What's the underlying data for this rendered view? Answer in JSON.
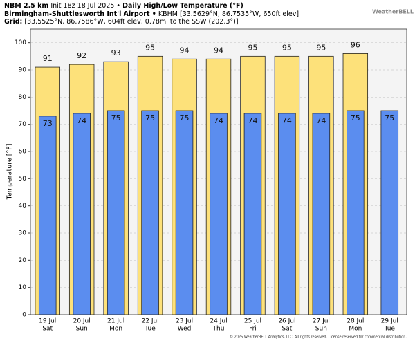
{
  "header": {
    "model": "NBM 2.5 km",
    "init": "Init 18z 18 Jul 2025 •",
    "title": "Daily High/Low Temperature (°F)",
    "station": "Birmingham-Shuttlesworth Int'l Airport •",
    "station_info": "KBHM [33.5629°N, 86.7535°W, 650ft elev]",
    "grid_label": "Grid:",
    "grid_info": "[33.5525°N, 86.7586°W, 604ft elev, 0.78mi to the SSW (202.3°)]",
    "logo": "WeatherBELL"
  },
  "chart_data": {
    "type": "bar",
    "y_label": "Temperature [°F]",
    "categories": [
      "19 Jul",
      "20 Jul",
      "21 Jul",
      "22 Jul",
      "23 Jul",
      "24 Jul",
      "25 Jul",
      "26 Jul",
      "27 Jul",
      "28 Jul",
      "29 Jul"
    ],
    "weekdays": [
      "Sat",
      "Sun",
      "Mon",
      "Tue",
      "Wed",
      "Thu",
      "Fri",
      "Sat",
      "Sun",
      "Mon",
      "Tue"
    ],
    "series": [
      {
        "color": "#fde17a",
        "values": [
          91,
          92,
          93,
          95,
          94,
          94,
          95,
          95,
          95,
          96,
          null
        ]
      },
      {
        "color": "#5b8def",
        "values": [
          73,
          74,
          75,
          75,
          75,
          74,
          74,
          74,
          74,
          75,
          75
        ]
      }
    ],
    "ylim": [
      0,
      105
    ],
    "yticks": [
      0,
      10,
      20,
      30,
      40,
      50,
      60,
      70,
      80,
      90,
      100
    ],
    "grid": true
  },
  "footer": "© 2025 WeatherBELL Analytics, LLC. All rights reserved. License reserved for commercial distribution."
}
